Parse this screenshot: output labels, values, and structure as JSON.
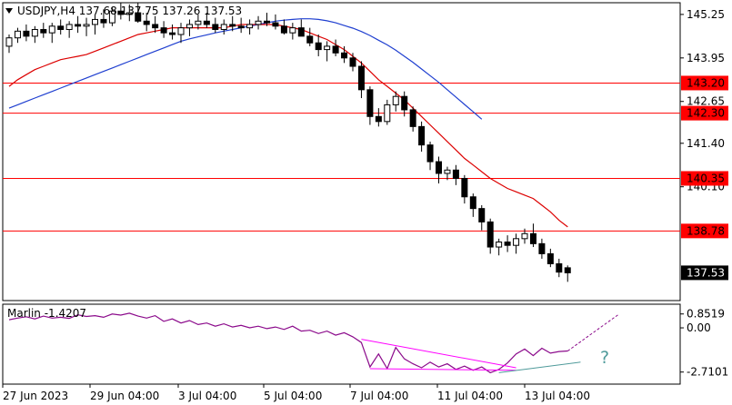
{
  "symbol_header": "USDJPY,H4  137.68 137.75 137.26 137.53",
  "indicator_header": "Marlin -1.4207",
  "price_axis": {
    "ticks": [
      "145.25",
      "143.95",
      "142.65",
      "141.40",
      "140.10"
    ],
    "level_tags": [
      {
        "label": "143.20",
        "value": 143.2
      },
      {
        "label": "142.30",
        "value": 142.3
      },
      {
        "label": "140.35",
        "value": 140.35
      },
      {
        "label": "138.78",
        "value": 138.78
      }
    ],
    "current_price_tag": "137.53",
    "range": [
      136.7,
      145.6
    ]
  },
  "indicator_axis": {
    "ticks": [
      "0.8519",
      "0.00",
      "-2.7101"
    ],
    "range": [
      -3.45,
      1.45
    ]
  },
  "time_axis": [
    "27 Jun 2023",
    "29 Jun 04:00",
    "3 Jul 04:00",
    "5 Jul 04:00",
    "7 Jul 04:00",
    "11 Jul 04:00",
    "13 Jul 04:00"
  ],
  "annotation": {
    "label": "?"
  },
  "colors": {
    "level_line": "#ff0000",
    "ma_fast": "#dc0000",
    "ma_slow": "#1f3fd0",
    "oscillator": "#8b0a8b",
    "divergence": "#ff00ff",
    "forecast_line": "#4e9a9a",
    "candle": "#000000"
  },
  "chart_data": {
    "type": "candlestick",
    "title": "USDJPY,H4",
    "ohlc_header": {
      "open": 137.68,
      "high": 137.75,
      "low": 137.26,
      "close": 137.53
    },
    "horizontal_levels": [
      143.2,
      142.3,
      140.35,
      138.78
    ],
    "ylim": [
      136.7,
      145.6
    ],
    "candles": [
      [
        144.3,
        144.65,
        144.1,
        144.55
      ],
      [
        144.55,
        144.85,
        144.4,
        144.75
      ],
      [
        144.75,
        144.95,
        144.45,
        144.6
      ],
      [
        144.6,
        144.9,
        144.4,
        144.8
      ],
      [
        144.8,
        145.0,
        144.55,
        144.7
      ],
      [
        144.7,
        145.0,
        144.4,
        144.9
      ],
      [
        144.9,
        145.1,
        144.65,
        144.8
      ],
      [
        144.8,
        145.05,
        144.55,
        144.95
      ],
      [
        144.95,
        145.2,
        144.7,
        144.9
      ],
      [
        144.9,
        145.15,
        144.6,
        144.95
      ],
      [
        144.95,
        145.25,
        144.65,
        145.1
      ],
      [
        145.1,
        145.4,
        144.85,
        145.0
      ],
      [
        145.0,
        145.45,
        144.9,
        145.35
      ],
      [
        145.35,
        145.6,
        145.1,
        145.25
      ],
      [
        145.25,
        145.55,
        145.05,
        145.3
      ],
      [
        145.3,
        145.6,
        145.0,
        145.05
      ],
      [
        145.05,
        145.3,
        144.75,
        144.95
      ],
      [
        144.95,
        145.2,
        144.7,
        144.85
      ],
      [
        144.85,
        145.05,
        144.55,
        144.7
      ],
      [
        144.7,
        144.95,
        144.5,
        144.65
      ],
      [
        144.65,
        145.0,
        144.4,
        144.85
      ],
      [
        144.85,
        145.1,
        144.6,
        144.95
      ],
      [
        144.95,
        145.25,
        144.8,
        145.05
      ],
      [
        145.05,
        145.3,
        144.85,
        144.95
      ],
      [
        144.95,
        145.15,
        144.7,
        144.8
      ],
      [
        144.8,
        145.1,
        144.65,
        144.95
      ],
      [
        144.95,
        145.2,
        144.75,
        144.9
      ],
      [
        144.9,
        145.15,
        144.7,
        144.85
      ],
      [
        144.85,
        145.1,
        144.65,
        144.95
      ],
      [
        144.95,
        145.2,
        144.8,
        145.05
      ],
      [
        145.05,
        145.3,
        144.9,
        145.0
      ],
      [
        145.0,
        145.25,
        144.8,
        144.9
      ],
      [
        144.9,
        145.1,
        144.65,
        144.7
      ],
      [
        144.7,
        145.0,
        144.5,
        144.85
      ],
      [
        144.85,
        145.1,
        144.6,
        144.6
      ],
      [
        144.6,
        144.85,
        144.3,
        144.4
      ],
      [
        144.4,
        144.65,
        144.0,
        144.2
      ],
      [
        144.2,
        144.45,
        143.85,
        144.3
      ],
      [
        144.3,
        144.5,
        144.0,
        144.1
      ],
      [
        144.1,
        144.3,
        143.8,
        143.95
      ],
      [
        143.95,
        144.1,
        143.55,
        143.7
      ],
      [
        143.7,
        143.85,
        142.75,
        143.0
      ],
      [
        143.0,
        143.1,
        141.95,
        142.2
      ],
      [
        142.2,
        142.45,
        141.9,
        142.05
      ],
      [
        142.05,
        142.7,
        141.95,
        142.55
      ],
      [
        142.55,
        142.95,
        142.35,
        142.8
      ],
      [
        142.8,
        142.95,
        142.2,
        142.4
      ],
      [
        142.4,
        142.5,
        141.75,
        141.9
      ],
      [
        141.9,
        142.05,
        141.15,
        141.35
      ],
      [
        141.35,
        141.45,
        140.6,
        140.85
      ],
      [
        140.85,
        141.0,
        140.2,
        140.5
      ],
      [
        140.5,
        140.7,
        140.3,
        140.6
      ],
      [
        140.6,
        140.75,
        140.15,
        140.35
      ],
      [
        140.35,
        140.45,
        139.6,
        139.8
      ],
      [
        139.8,
        139.9,
        139.2,
        139.45
      ],
      [
        139.45,
        139.55,
        138.8,
        139.05
      ],
      [
        139.05,
        139.15,
        138.1,
        138.3
      ],
      [
        138.3,
        138.55,
        138.05,
        138.45
      ],
      [
        138.45,
        138.65,
        138.15,
        138.35
      ],
      [
        138.35,
        138.7,
        138.1,
        138.55
      ],
      [
        138.55,
        138.85,
        138.4,
        138.7
      ],
      [
        138.7,
        139.0,
        138.3,
        138.4
      ],
      [
        138.4,
        138.55,
        137.95,
        138.1
      ],
      [
        138.1,
        138.25,
        137.7,
        137.8
      ],
      [
        137.8,
        137.95,
        137.4,
        137.55
      ],
      [
        137.68,
        137.75,
        137.26,
        137.53
      ]
    ],
    "ma_fast": [
      143.1,
      143.3,
      143.45,
      143.6,
      143.7,
      143.8,
      143.9,
      143.95,
      144.0,
      144.05,
      144.15,
      144.25,
      144.35,
      144.45,
      144.55,
      144.65,
      144.7,
      144.75,
      144.8,
      144.85,
      144.85,
      144.85,
      144.85,
      144.85,
      144.85,
      144.85,
      144.9,
      144.95,
      144.95,
      144.95,
      144.95,
      144.95,
      144.9,
      144.85,
      144.8,
      144.7,
      144.6,
      144.5,
      144.35,
      144.2,
      144.0,
      143.8,
      143.55,
      143.3,
      143.1,
      142.9,
      142.7,
      142.45,
      142.2,
      141.95,
      141.7,
      141.45,
      141.2,
      140.95,
      140.75,
      140.55,
      140.35,
      140.2,
      140.05,
      139.95,
      139.85,
      139.75,
      139.55,
      139.35,
      139.1,
      138.9
    ],
    "ma_slow": [
      142.45,
      142.55,
      142.65,
      142.75,
      142.85,
      142.95,
      143.05,
      143.15,
      143.25,
      143.35,
      143.45,
      143.55,
      143.65,
      143.75,
      143.85,
      143.95,
      144.05,
      144.15,
      144.25,
      144.35,
      144.45,
      144.52,
      144.58,
      144.64,
      144.7,
      144.75,
      144.8,
      144.85,
      144.9,
      144.95,
      145.0,
      145.05,
      145.08,
      145.1,
      145.12,
      145.12,
      145.1,
      145.06,
      145.0,
      144.92,
      144.84,
      144.74,
      144.62,
      144.48,
      144.34,
      144.18,
      144.0,
      143.82,
      143.62,
      143.42,
      143.22,
      143.0,
      142.78,
      142.56,
      142.34,
      142.12
    ],
    "oscillator_ylim": [
      -3.45,
      1.45
    ],
    "oscillator": [
      0.5,
      0.6,
      0.68,
      0.55,
      0.72,
      0.6,
      0.65,
      0.58,
      0.8,
      0.7,
      0.75,
      0.65,
      0.85,
      0.78,
      0.9,
      0.72,
      0.6,
      0.75,
      0.4,
      0.55,
      0.3,
      0.45,
      0.2,
      0.3,
      0.1,
      0.25,
      0.05,
      0.15,
      0.0,
      0.1,
      -0.05,
      0.05,
      -0.1,
      0.1,
      -0.2,
      -0.15,
      -0.35,
      -0.2,
      -0.45,
      -0.3,
      -0.55,
      -0.9,
      -2.4,
      -1.6,
      -2.5,
      -1.2,
      -1.9,
      -2.2,
      -2.45,
      -2.1,
      -2.4,
      -2.2,
      -2.55,
      -2.35,
      -2.6,
      -2.4,
      -2.75,
      -2.55,
      -2.15,
      -1.6,
      -1.3,
      -1.7,
      -1.25,
      -1.55,
      -1.45,
      -1.42
    ],
    "forecast_points": [
      -1.42,
      0.85
    ],
    "divergence_upper": [
      -0.7,
      -2.45
    ],
    "divergence_lower": [
      -2.5,
      -2.6
    ],
    "forecast_lower": [
      -2.75,
      -2.1
    ]
  }
}
